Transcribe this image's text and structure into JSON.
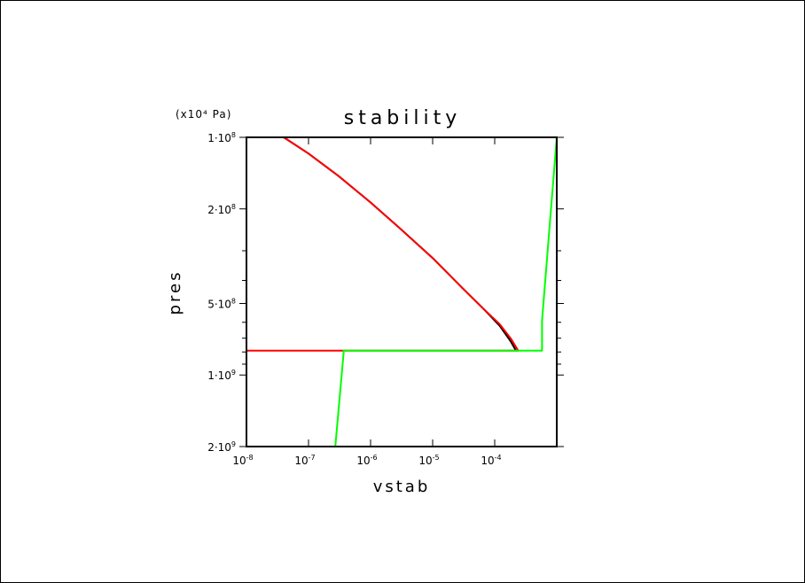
{
  "chart_data": {
    "type": "line",
    "title": "stability",
    "xlabel": "vstab",
    "ylabel": "pres",
    "yunit": "(x10⁴ Pa)",
    "xscale": "log",
    "yscale": "log",
    "y_inverted": true,
    "xlim": [
      1e-08,
      0.001
    ],
    "ylim": [
      100000000.0,
      2000000000.0
    ],
    "x_tick_labels": [
      {
        "value": 1e-08,
        "base": "10",
        "exp": "-8"
      },
      {
        "value": 1e-07,
        "base": "10",
        "exp": "-7"
      },
      {
        "value": 1e-06,
        "base": "10",
        "exp": "-6"
      },
      {
        "value": 1e-05,
        "base": "10",
        "exp": "-5"
      },
      {
        "value": 0.0001,
        "base": "10",
        "exp": "-4"
      }
    ],
    "y_tick_labels": [
      {
        "value": 100000000.0,
        "mant": "1",
        "exp": "8"
      },
      {
        "value": 200000000.0,
        "mant": "2",
        "exp": "8"
      },
      {
        "value": 500000000.0,
        "mant": "5",
        "exp": "8"
      },
      {
        "value": 1000000000.0,
        "mant": "1",
        "exp": "9"
      },
      {
        "value": 2000000000.0,
        "mant": "2",
        "exp": "9"
      }
    ],
    "grid": false,
    "series": [
      {
        "color": "#000000",
        "x": [
          4e-08,
          1e-07,
          3e-07,
          1e-06,
          3e-06,
          1e-05,
          3e-05,
          7e-05,
          0.00012,
          0.00018,
          0.00022
        ],
        "y": [
          100000000.0,
          117000000.0,
          145000000.0,
          188000000.0,
          242000000.0,
          322000000.0,
          430000000.0,
          535000000.0,
          620000000.0,
          720000000.0,
          790000000.0
        ]
      },
      {
        "color": "#ff0000",
        "x": [
          4e-08,
          1e-07,
          3e-07,
          1e-06,
          3e-06,
          1e-05,
          3e-05,
          7e-05,
          0.00012,
          0.00018,
          0.00024,
          0.00024,
          1e-08,
          1e-08
        ],
        "y": [
          100000000.0,
          117000000.0,
          145000000.0,
          188000000.0,
          242000000.0,
          322000000.0,
          430000000.0,
          535000000.0,
          610000000.0,
          700000000.0,
          790000000.0,
          790000000.0,
          790000000.0,
          2000000000.0
        ]
      },
      {
        "color": "#00ff00",
        "x": [
          0.001,
          0.00058,
          0.00058,
          3.7e-07,
          2.7e-07
        ],
        "y": [
          100000000.0,
          590000000.0,
          790000000.0,
          790000000.0,
          2000000000.0
        ]
      }
    ]
  }
}
